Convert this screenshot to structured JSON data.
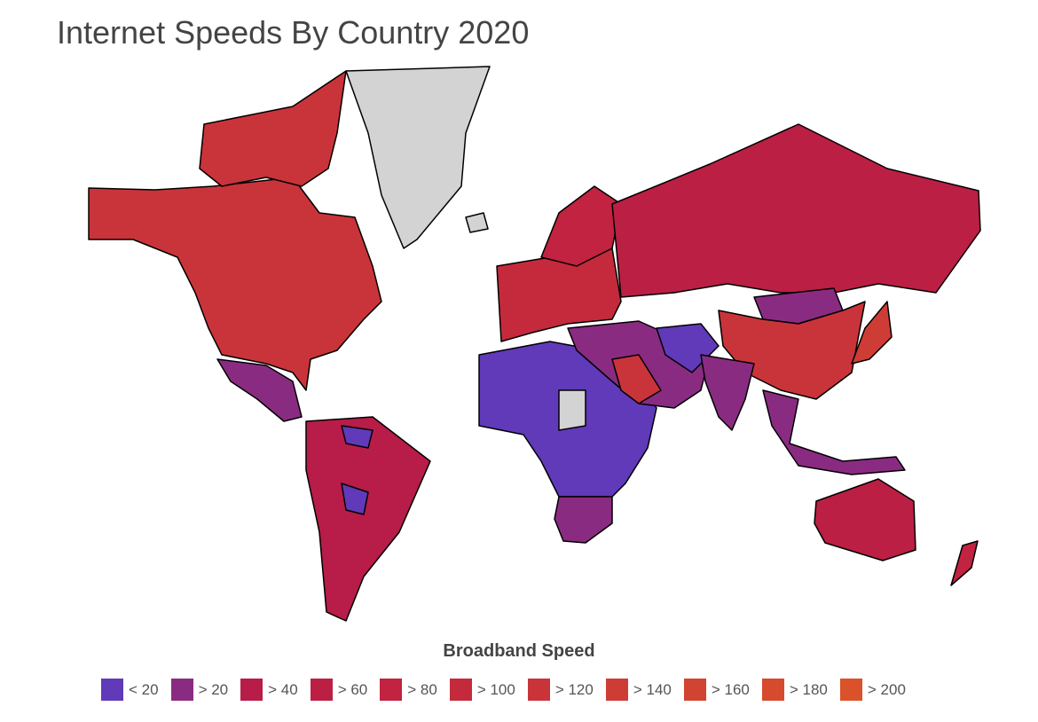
{
  "title": "Internet Speeds By Country 2020",
  "legend": {
    "title": "Broadband Speed",
    "items": [
      {
        "label": "< 20",
        "color": "#603ab9"
      },
      {
        "label": "> 20",
        "color": "#8a2b82"
      },
      {
        "label": "> 40",
        "color": "#b81c48"
      },
      {
        "label": "> 60",
        "color": "#bc1f44"
      },
      {
        "label": "> 80",
        "color": "#c12340"
      },
      {
        "label": "> 100",
        "color": "#c52a3c"
      },
      {
        "label": "> 120",
        "color": "#c9343a"
      },
      {
        "label": "> 140",
        "color": "#cd3d36"
      },
      {
        "label": "> 160",
        "color": "#d24432"
      },
      {
        "label": "> 180",
        "color": "#d64a2e"
      },
      {
        "label": "> 200",
        "color": "#da512a"
      }
    ]
  },
  "no_data_color": "#d3d3d3",
  "regions": [
    {
      "name": "north-america",
      "cat": 6
    },
    {
      "name": "greenland",
      "cat": -1
    },
    {
      "name": "canada-arctic",
      "cat": 6
    },
    {
      "name": "mexico",
      "cat": 1
    },
    {
      "name": "south-america",
      "cat": 2
    },
    {
      "name": "bolivia-venezuela",
      "cat": 0
    },
    {
      "name": "africa",
      "cat": 0
    },
    {
      "name": "southern-africa",
      "cat": 1
    },
    {
      "name": "europe",
      "cat": 5
    },
    {
      "name": "scandinavia",
      "cat": 4
    },
    {
      "name": "russia",
      "cat": 3
    },
    {
      "name": "middle-east",
      "cat": 1
    },
    {
      "name": "saudi-arabia",
      "cat": 6
    },
    {
      "name": "central-asia",
      "cat": 0
    },
    {
      "name": "china",
      "cat": 6
    },
    {
      "name": "mongolia",
      "cat": 1
    },
    {
      "name": "india",
      "cat": 1
    },
    {
      "name": "southeast-asia",
      "cat": 1
    },
    {
      "name": "japan",
      "cat": 7
    },
    {
      "name": "australia",
      "cat": 3
    },
    {
      "name": "new-zealand",
      "cat": 4
    },
    {
      "name": "iceland",
      "cat": -1
    },
    {
      "name": "sudan",
      "cat": -1
    }
  ]
}
